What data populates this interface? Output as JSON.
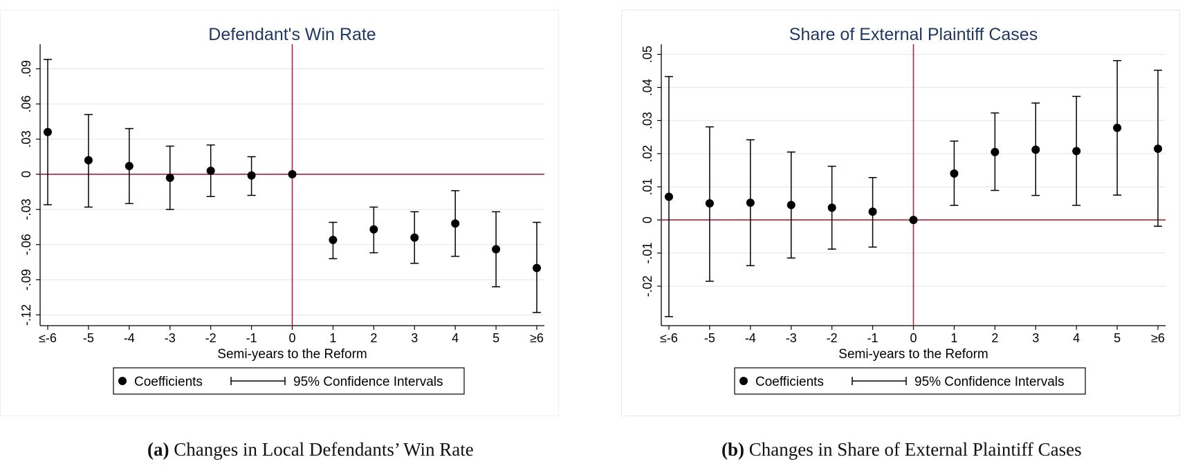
{
  "colors": {
    "title": "#1f3864",
    "reference_line": "#b22238",
    "marker": "#000000",
    "grid": "#e8eef0",
    "axis": "#000000"
  },
  "chart_data": [
    {
      "type": "scatter",
      "title": "Defendant's Win Rate",
      "xlabel": "Semi-years to the Reform",
      "ylabel": "",
      "x_categories": [
        "≤-6",
        "-5",
        "-4",
        "-3",
        "-2",
        "-1",
        "0",
        "1",
        "2",
        "3",
        "4",
        "5",
        "≥6"
      ],
      "yticks": [
        ".09",
        ".06",
        ".03",
        "0",
        "-.03",
        "-.06",
        "-.09",
        "-.12"
      ],
      "ytick_values": [
        0.09,
        0.06,
        0.03,
        0,
        -0.03,
        -0.06,
        -0.09,
        -0.12
      ],
      "ylim": [
        -0.128,
        0.108
      ],
      "grid": true,
      "reference_lines": {
        "x_category": "0",
        "y": 0
      },
      "series": [
        {
          "name": "Coefficients",
          "values": [
            0.036,
            0.012,
            0.007,
            -0.003,
            0.003,
            -0.001,
            0.0,
            -0.056,
            -0.047,
            -0.054,
            -0.042,
            -0.064,
            -0.08
          ],
          "ci_low": [
            -0.026,
            -0.028,
            -0.025,
            -0.03,
            -0.019,
            -0.018,
            0.0,
            -0.072,
            -0.067,
            -0.076,
            -0.07,
            -0.096,
            -0.118
          ],
          "ci_high": [
            0.098,
            0.051,
            0.039,
            0.024,
            0.025,
            0.015,
            0.0,
            -0.041,
            -0.028,
            -0.032,
            -0.014,
            -0.032,
            -0.041
          ]
        }
      ],
      "legend": {
        "position": "bottom",
        "items": [
          "Coefficients",
          "95% Confidence Intervals"
        ]
      },
      "caption_label": "(a)",
      "caption_text": "Changes in Local Defendants’ Win Rate"
    },
    {
      "type": "scatter",
      "title": "Share of External Plaintiff Cases",
      "xlabel": "Semi-years to the Reform",
      "ylabel": "",
      "x_categories": [
        "≤-6",
        "-5",
        "-4",
        "-3",
        "-2",
        "-1",
        "0",
        "1",
        "2",
        "3",
        "4",
        "5",
        "≥6"
      ],
      "yticks": [
        ".05",
        ".04",
        ".03",
        ".02",
        ".01",
        "0",
        "-.01",
        "-.02"
      ],
      "ytick_values": [
        0.05,
        0.04,
        0.03,
        0.02,
        0.01,
        0,
        -0.01,
        -0.02
      ],
      "ylim": [
        -0.0315,
        0.052
      ],
      "grid": true,
      "reference_lines": {
        "x_category": "0",
        "y": 0
      },
      "series": [
        {
          "name": "Coefficients",
          "values": [
            0.007,
            0.005,
            0.0052,
            0.0045,
            0.0037,
            0.0025,
            0.0,
            0.014,
            0.0205,
            0.0212,
            0.0208,
            0.0278,
            0.0215
          ],
          "ci_low": [
            -0.0292,
            -0.0185,
            -0.0138,
            -0.0115,
            -0.0088,
            -0.0082,
            0.0,
            0.0044,
            0.0089,
            0.0074,
            0.0044,
            0.0075,
            -0.0019
          ],
          "ci_high": [
            0.0433,
            0.0281,
            0.0242,
            0.0205,
            0.0162,
            0.0128,
            0.0,
            0.0238,
            0.0323,
            0.0353,
            0.0373,
            0.0481,
            0.0452
          ]
        }
      ],
      "legend": {
        "position": "bottom",
        "items": [
          "Coefficients",
          "95% Confidence Intervals"
        ]
      },
      "caption_label": "(b)",
      "caption_text": "Changes in Share of External Plaintiff Cases"
    }
  ]
}
